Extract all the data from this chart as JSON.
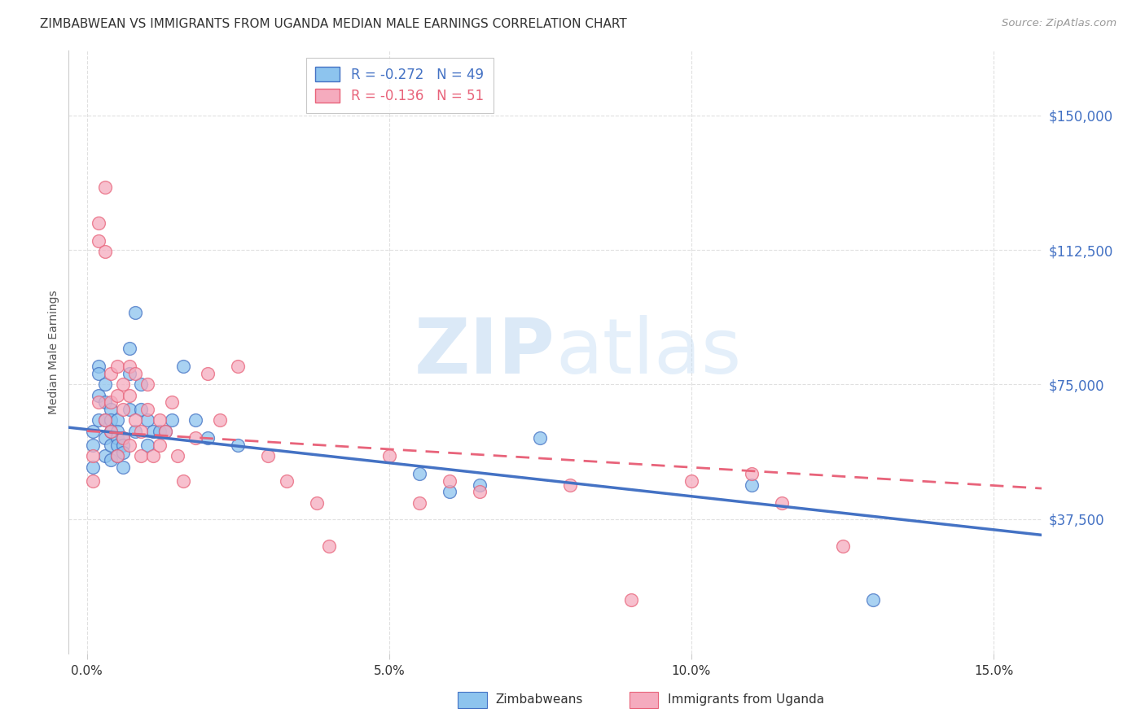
{
  "title": "ZIMBABWEAN VS IMMIGRANTS FROM UGANDA MEDIAN MALE EARNINGS CORRELATION CHART",
  "source": "Source: ZipAtlas.com",
  "xlabel_ticks": [
    "0.0%",
    "5.0%",
    "10.0%",
    "15.0%"
  ],
  "xlabel_tick_vals": [
    0.0,
    0.05,
    0.1,
    0.15
  ],
  "ylabel": "Median Male Earnings",
  "ylabel_ticks": [
    "$37,500",
    "$75,000",
    "$112,500",
    "$150,000"
  ],
  "ylabel_tick_vals": [
    37500,
    75000,
    112500,
    150000
  ],
  "ylim": [
    0,
    168000
  ],
  "xlim": [
    -0.003,
    0.158
  ],
  "legend1_text": "R = -0.272   N = 49",
  "legend2_text": "R = -0.136   N = 51",
  "color_blue": "#8DC4EE",
  "color_pink": "#F5ABBE",
  "color_blue_line": "#4472C4",
  "color_pink_line": "#E8637A",
  "color_pink_line_dashed": "#E8A0AA",
  "watermark_zip": "ZIP",
  "watermark_atlas": "atlas",
  "blue_scatter_x": [
    0.001,
    0.001,
    0.001,
    0.002,
    0.002,
    0.002,
    0.002,
    0.003,
    0.003,
    0.003,
    0.003,
    0.003,
    0.004,
    0.004,
    0.004,
    0.004,
    0.004,
    0.005,
    0.005,
    0.005,
    0.005,
    0.005,
    0.006,
    0.006,
    0.006,
    0.006,
    0.007,
    0.007,
    0.007,
    0.008,
    0.008,
    0.009,
    0.009,
    0.01,
    0.01,
    0.011,
    0.012,
    0.013,
    0.014,
    0.016,
    0.018,
    0.02,
    0.025,
    0.055,
    0.06,
    0.065,
    0.075,
    0.11,
    0.13
  ],
  "blue_scatter_y": [
    62000,
    58000,
    52000,
    80000,
    78000,
    72000,
    65000,
    75000,
    70000,
    65000,
    60000,
    55000,
    68000,
    65000,
    62000,
    58000,
    54000,
    65000,
    62000,
    60000,
    58000,
    55000,
    60000,
    58000,
    56000,
    52000,
    85000,
    78000,
    68000,
    95000,
    62000,
    75000,
    68000,
    65000,
    58000,
    62000,
    62000,
    62000,
    65000,
    80000,
    65000,
    60000,
    58000,
    50000,
    45000,
    47000,
    60000,
    47000,
    15000
  ],
  "pink_scatter_x": [
    0.001,
    0.001,
    0.002,
    0.002,
    0.002,
    0.003,
    0.003,
    0.003,
    0.004,
    0.004,
    0.004,
    0.005,
    0.005,
    0.005,
    0.006,
    0.006,
    0.006,
    0.007,
    0.007,
    0.007,
    0.008,
    0.008,
    0.009,
    0.009,
    0.01,
    0.01,
    0.011,
    0.012,
    0.012,
    0.013,
    0.014,
    0.015,
    0.016,
    0.018,
    0.02,
    0.022,
    0.025,
    0.03,
    0.033,
    0.038,
    0.04,
    0.05,
    0.055,
    0.06,
    0.065,
    0.08,
    0.09,
    0.1,
    0.11,
    0.115,
    0.125
  ],
  "pink_scatter_y": [
    55000,
    48000,
    120000,
    115000,
    70000,
    130000,
    112000,
    65000,
    78000,
    70000,
    62000,
    80000,
    72000,
    55000,
    75000,
    68000,
    60000,
    80000,
    72000,
    58000,
    78000,
    65000,
    62000,
    55000,
    75000,
    68000,
    55000,
    65000,
    58000,
    62000,
    70000,
    55000,
    48000,
    60000,
    78000,
    65000,
    80000,
    55000,
    48000,
    42000,
    30000,
    55000,
    42000,
    48000,
    45000,
    47000,
    15000,
    48000,
    50000,
    42000,
    30000
  ]
}
